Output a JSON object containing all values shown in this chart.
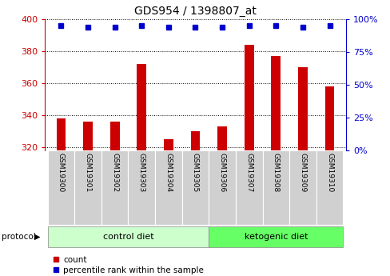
{
  "title": "GDS954 / 1398807_at",
  "samples": [
    "GSM19300",
    "GSM19301",
    "GSM19302",
    "GSM19303",
    "GSM19304",
    "GSM19305",
    "GSM19306",
    "GSM19307",
    "GSM19308",
    "GSM19309",
    "GSM19310"
  ],
  "counts": [
    338,
    336,
    336,
    372,
    325,
    330,
    333,
    384,
    377,
    370,
    358
  ],
  "percentile_ranks": [
    95,
    94,
    94,
    95,
    94,
    94,
    94,
    95,
    95,
    94,
    95
  ],
  "ylim_left": [
    318,
    400
  ],
  "ylim_right": [
    0,
    100
  ],
  "yticks_left": [
    320,
    340,
    360,
    380,
    400
  ],
  "yticks_right": [
    0,
    25,
    50,
    75,
    100
  ],
  "bar_color": "#cc0000",
  "dot_color": "#0000cc",
  "bar_width": 0.35,
  "groups": [
    {
      "label": "control diet",
      "indices": [
        0,
        1,
        2,
        3,
        4,
        5
      ],
      "color_light": "#ccffcc",
      "color_dark": "#66ff66"
    },
    {
      "label": "ketogenic diet",
      "indices": [
        6,
        7,
        8,
        9,
        10
      ],
      "color_light": "#ccffcc",
      "color_dark": "#66ff66"
    }
  ],
  "group_colors": [
    "#ccffcc",
    "#66ff66"
  ],
  "protocol_label": "protocol",
  "background_color": "#ffffff",
  "plot_bg_color": "#ffffff",
  "sample_box_color": "#d0d0d0",
  "tick_label_color_left": "#cc0000",
  "tick_label_color_right": "#0000cc",
  "legend_items": [
    {
      "label": "count",
      "color": "#cc0000"
    },
    {
      "label": "percentile rank within the sample",
      "color": "#0000cc"
    }
  ],
  "title_fontsize": 10,
  "axis_fontsize": 8,
  "sample_fontsize": 6.5,
  "legend_fontsize": 7.5,
  "group_fontsize": 8
}
